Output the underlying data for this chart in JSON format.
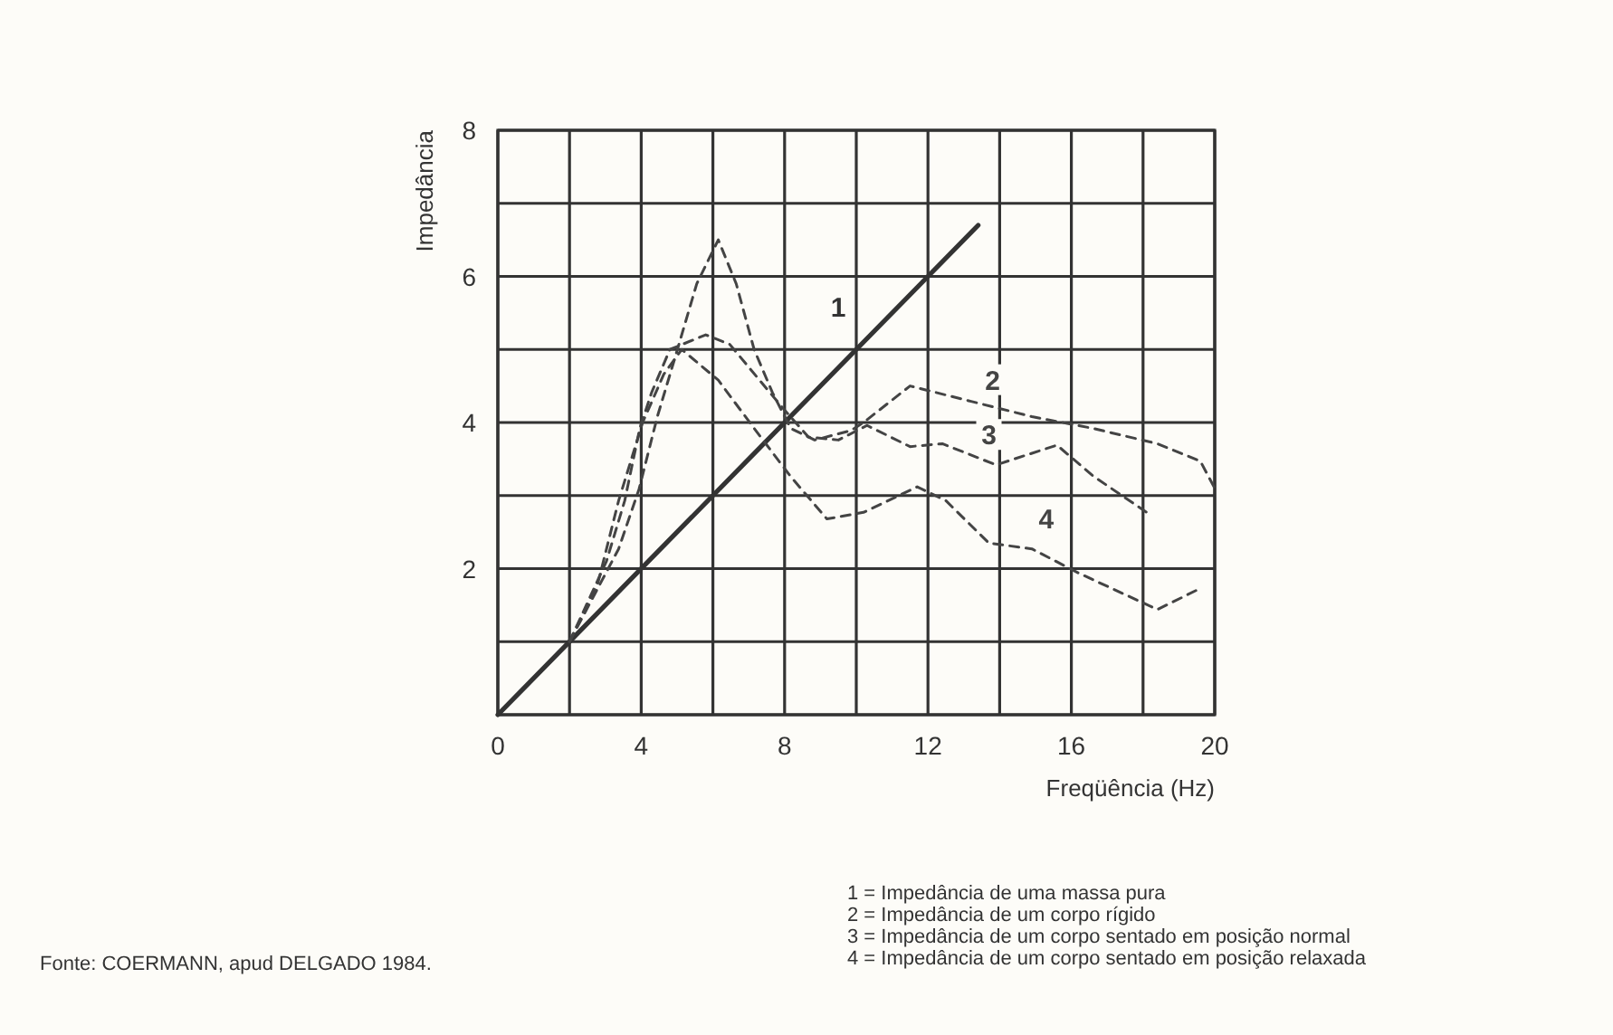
{
  "chart_data": {
    "type": "line",
    "xlabel": "Freqüência (Hz)",
    "ylabel": "Impedância",
    "xlim": [
      0,
      20
    ],
    "ylim": [
      0,
      8
    ],
    "xticks": [
      0,
      {
        "value": 2,
        "label": null
      },
      4,
      {
        "value": 6,
        "label": null
      },
      8,
      {
        "value": 10,
        "label": null
      },
      12,
      {
        "value": 14,
        "label": null
      },
      16,
      {
        "value": 18,
        "label": null
      },
      20
    ],
    "yticks": [
      {
        "value": 0,
        "label": null
      },
      {
        "value": 1,
        "label": null
      },
      2,
      {
        "value": 3,
        "label": null
      },
      4,
      {
        "value": 5,
        "label": null
      },
      6,
      {
        "value": 7,
        "label": null
      },
      8
    ],
    "grid": true,
    "marker": "none",
    "series": [
      {
        "name": "1",
        "color": "#333333",
        "line_style": "solid",
        "x": [
          0,
          13.4
        ],
        "values": [
          0,
          6.7
        ]
      },
      {
        "name": "2",
        "color": "#444444",
        "line_style": "dashed",
        "x": [
          2,
          3.37,
          3.94,
          4.45,
          4.95,
          5.55,
          6.15,
          6.65,
          7.15,
          7.66,
          8.17,
          8.84,
          9.85,
          10.2,
          11.5,
          13.2,
          14.9,
          16.6,
          18.4,
          19.6,
          20
        ],
        "values": [
          1,
          2.27,
          3.09,
          4.08,
          4.9,
          5.9,
          6.5,
          5.9,
          5.0,
          4.41,
          3.92,
          3.76,
          3.89,
          4.0,
          4.5,
          4.29,
          4.08,
          3.92,
          3.71,
          3.47,
          3.1
        ]
      },
      {
        "name": "3",
        "color": "#444444",
        "line_style": "dashed",
        "x": [
          2,
          3.03,
          3.54,
          3.96,
          4.29,
          4.8,
          5.8,
          6.47,
          7.3,
          8.0,
          8.67,
          9.5,
          10.3,
          11.5,
          12.4,
          13.9,
          15.6,
          16.6,
          18.1
        ],
        "values": [
          1,
          2.1,
          2.93,
          3.92,
          4.41,
          5.0,
          5.2,
          5.07,
          4.58,
          4.17,
          3.8,
          3.76,
          3.96,
          3.67,
          3.71,
          3.42,
          3.69,
          3.27,
          2.77
        ]
      },
      {
        "name": "4",
        "color": "#444444",
        "line_style": "dashed",
        "x": [
          2,
          2.78,
          3.37,
          4.04,
          4.63,
          5.13,
          6.15,
          7.15,
          8.17,
          9.18,
          10.2,
          11.7,
          12.5,
          13.7,
          14.9,
          16.2,
          18.4,
          19.6
        ],
        "values": [
          1,
          1.78,
          2.93,
          4.0,
          4.66,
          5.0,
          4.58,
          3.92,
          3.26,
          2.68,
          2.77,
          3.12,
          2.93,
          2.35,
          2.27,
          1.94,
          1.44,
          1.73
        ]
      }
    ],
    "annotations": [
      "1 = Impedância de uma massa pura",
      "2 = Impedância de um corpo rígido",
      "3 = Impedância de um corpo sentado em posição normal",
      "4 = Impedância de um corpo sentado em posição relaxada",
      "Fonte: COERMANN, apud DELGADO 1984."
    ]
  }
}
